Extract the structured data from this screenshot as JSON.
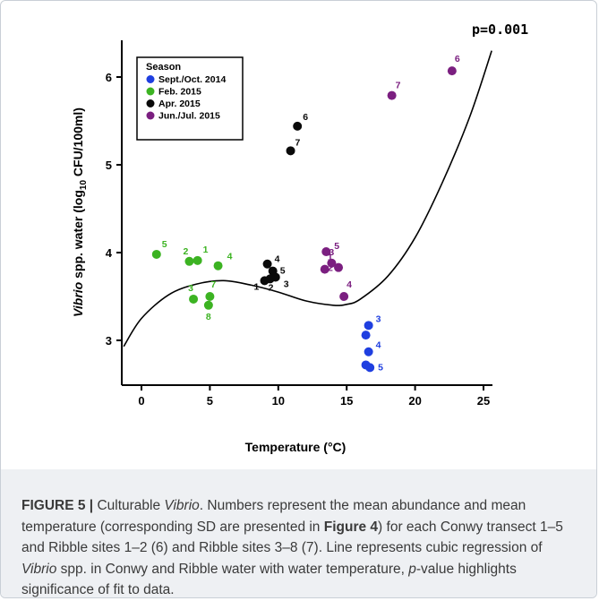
{
  "chart_data": {
    "type": "scatter",
    "p_value_label": "p=0.001",
    "xlabel": "Temperature (°C)",
    "ylabel": {
      "italic": "Vibrio",
      "middle": " spp. water (log",
      "sub": "10",
      "end": " CFU/100ml)"
    },
    "xlim": [
      -1.3,
      26
    ],
    "ylim": [
      2.5,
      6.4
    ],
    "x_ticks": [
      0,
      5,
      10,
      15,
      20,
      25
    ],
    "y_ticks": [
      3,
      4,
      5,
      6
    ],
    "legend": {
      "title": "Season",
      "position": "top-left"
    },
    "series": [
      {
        "name": "Sept./Oct. 2014",
        "color": "#1f3fe0",
        "points": [
          {
            "x": 16.6,
            "y": 3.17,
            "label": "3"
          },
          {
            "x": 16.4,
            "y": 3.06,
            "label": ""
          },
          {
            "x": 16.6,
            "y": 2.87,
            "label": "4"
          },
          {
            "x": 16.4,
            "y": 2.72,
            "label": ""
          },
          {
            "x": 16.7,
            "y": 2.69,
            "label": "5"
          }
        ]
      },
      {
        "name": "Feb. 2015",
        "color": "#3cb322",
        "points": [
          {
            "x": 1.1,
            "y": 3.98,
            "label": "5"
          },
          {
            "x": 3.5,
            "y": 3.9,
            "label": "2"
          },
          {
            "x": 4.1,
            "y": 3.91,
            "label": "1"
          },
          {
            "x": 5.6,
            "y": 3.85,
            "label": "4"
          },
          {
            "x": 3.8,
            "y": 3.47,
            "label": "3"
          },
          {
            "x": 5.0,
            "y": 3.5,
            "label": "7"
          },
          {
            "x": 4.9,
            "y": 3.4,
            "label": "8"
          }
        ]
      },
      {
        "name": "Apr. 2015",
        "color": "#0a0a0a",
        "points": [
          {
            "x": 11.4,
            "y": 5.44,
            "label": "6"
          },
          {
            "x": 10.9,
            "y": 5.16,
            "label": "7"
          },
          {
            "x": 9.2,
            "y": 3.87,
            "label": "4"
          },
          {
            "x": 9.6,
            "y": 3.79,
            "label": "5"
          },
          {
            "x": 9.0,
            "y": 3.68,
            "label": "1"
          },
          {
            "x": 9.4,
            "y": 3.7,
            "label": "2"
          },
          {
            "x": 9.8,
            "y": 3.72,
            "label": "3"
          }
        ]
      },
      {
        "name": "Jun./Jul. 2015",
        "color": "#7b1f80",
        "points": [
          {
            "x": 22.7,
            "y": 6.07,
            "label": "6"
          },
          {
            "x": 18.3,
            "y": 5.79,
            "label": "7"
          },
          {
            "x": 13.5,
            "y": 4.01,
            "label": "5"
          },
          {
            "x": 13.9,
            "y": 3.88,
            "label": "3"
          },
          {
            "x": 14.4,
            "y": 3.83,
            "label": "2"
          },
          {
            "x": 13.4,
            "y": 3.81,
            "label": "1"
          },
          {
            "x": 14.8,
            "y": 3.5,
            "label": "4"
          }
        ]
      }
    ],
    "regression": {
      "type": "cubic",
      "x": [
        -1.3,
        0,
        2,
        4,
        6,
        8,
        10,
        12,
        14,
        15,
        16,
        18,
        20,
        22,
        24,
        25.6
      ],
      "y": [
        2.93,
        3.25,
        3.52,
        3.64,
        3.68,
        3.63,
        3.55,
        3.45,
        3.4,
        3.41,
        3.47,
        3.73,
        4.17,
        4.8,
        5.55,
        6.3
      ]
    }
  },
  "caption": {
    "figure_label": "FIGURE 5 | ",
    "t1": "Culturable ",
    "t1_italic": "Vibrio",
    "t2": ". Numbers represent the mean abundance and mean temperature (corresponding SD are presented in ",
    "t2_bold": "Figure 4",
    "t3": ") for each Conwy transect 1–5 and Ribble sites 1–2 (6) and Ribble sites 3–8 (7). Line represents cubic regression of ",
    "t3_italic": "Vibrio",
    "t4": " spp. in Conwy and Ribble water with water temperature, ",
    "t4_italic": "p",
    "t5": "-value highlights significance of fit to data."
  }
}
